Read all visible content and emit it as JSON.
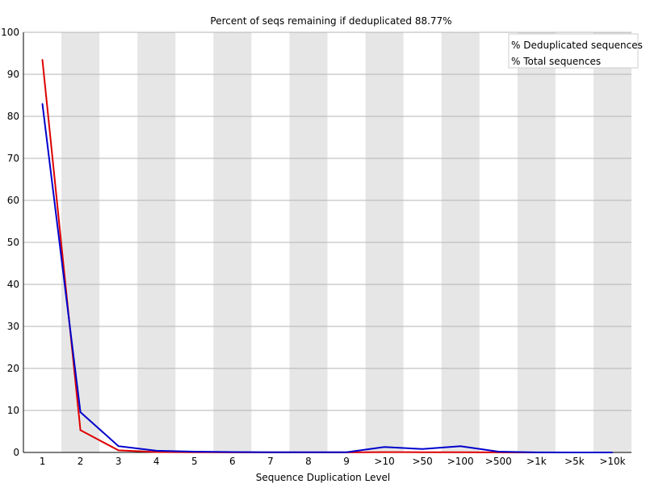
{
  "chart_data": {
    "type": "line",
    "title": "Percent of seqs remaining if deduplicated 88.77%",
    "xlabel": "Sequence Duplication Level",
    "ylabel": "",
    "categories": [
      "1",
      "2",
      "3",
      "4",
      "5",
      "6",
      "7",
      "8",
      "9",
      ">10",
      ">50",
      ">100",
      ">500",
      ">1k",
      ">5k",
      ">10k"
    ],
    "ylim": [
      0,
      100
    ],
    "yticks": [
      0,
      10,
      20,
      30,
      40,
      50,
      60,
      70,
      80,
      90,
      100
    ],
    "grid": true,
    "legend_position": "top-right",
    "series": [
      {
        "name": "% Deduplicated sequences",
        "color": "#dd0000",
        "values": [
          93.5,
          5.3,
          0.5,
          0.1,
          0.05,
          0.02,
          0.01,
          0.01,
          0.01,
          0.08,
          0.05,
          0.05,
          0.02,
          0.0,
          0.0,
          0.0
        ]
      },
      {
        "name": "% Total sequences",
        "color": "#0000cc",
        "values": [
          83.0,
          9.6,
          1.5,
          0.4,
          0.2,
          0.1,
          0.05,
          0.05,
          0.05,
          1.3,
          0.8,
          1.5,
          0.2,
          0.02,
          0.0,
          0.0
        ]
      }
    ]
  }
}
